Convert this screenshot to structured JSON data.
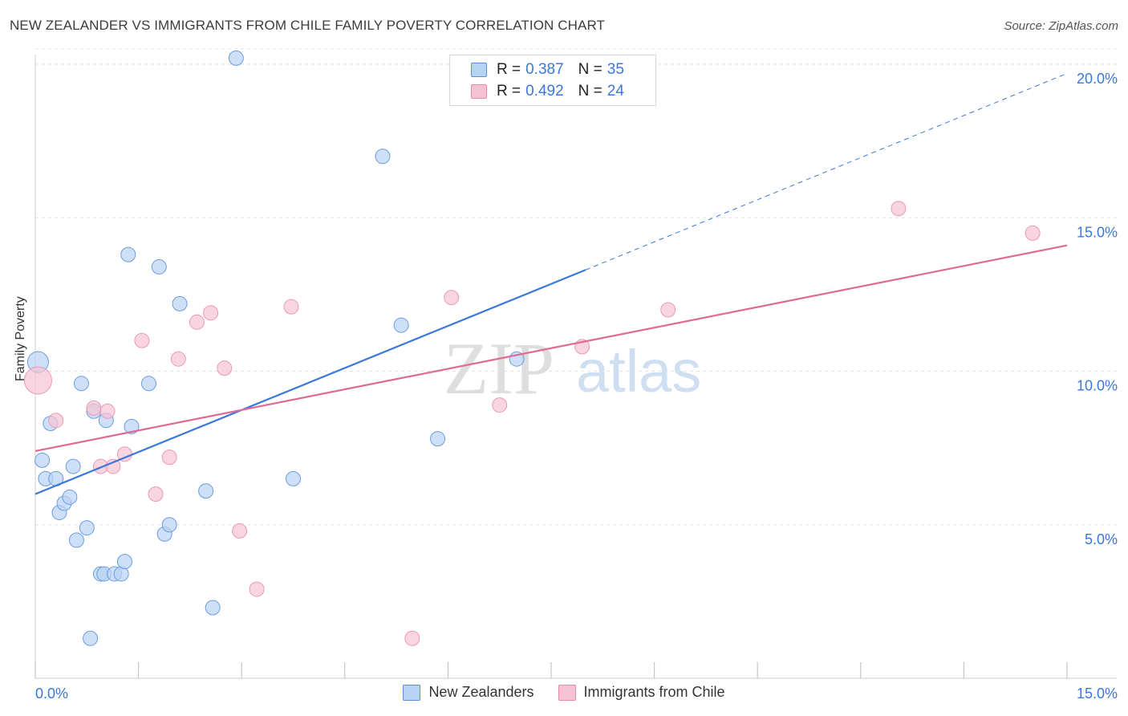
{
  "title": "NEW ZEALANDER VS IMMIGRANTS FROM CHILE FAMILY POVERTY CORRELATION CHART",
  "source": "Source: ZipAtlas.com",
  "colors": {
    "blue": "#3a78d8",
    "blue_fill": "#b9d3f3",
    "pink": "#e06a95",
    "pink_fill": "#f7c3d4",
    "tick_text": "#3a78d8"
  },
  "legend": {
    "rows": [
      {
        "r_label": "R =",
        "r_value": "0.387",
        "n_label": "N =",
        "n_value": "35"
      },
      {
        "r_label": "R =",
        "r_value": "0.492",
        "n_label": "N =",
        "n_value": "24"
      }
    ]
  },
  "chart_data": {
    "type": "scatter",
    "title": "NEW ZEALANDER VS IMMIGRANTS FROM CHILE FAMILY POVERTY CORRELATION CHART",
    "xlabel": "",
    "ylabel": "Family Poverty",
    "xlim": [
      0,
      15
    ],
    "ylim": [
      0,
      20
    ],
    "x_tick_labels": [
      "0.0%",
      "15.0%"
    ],
    "y_ticks": [
      5,
      10,
      15,
      20
    ],
    "y_tick_labels": [
      "5.0%",
      "10.0%",
      "15.0%",
      "20.0%"
    ],
    "grid": true,
    "legend_position": "top-center",
    "watermark": "ZIPatlas",
    "series": [
      {
        "name": "New Zealanders",
        "R": 0.387,
        "N": 35,
        "trend": {
          "x0": 0.0,
          "y0": 6.0,
          "x1": 8.0,
          "y1": 13.3,
          "dash_to_x": 15.0,
          "dash_to_y": 19.7
        },
        "points": [
          [
            0.04,
            10.3,
            12
          ],
          [
            0.1,
            7.1,
            8
          ],
          [
            0.15,
            6.5,
            8
          ],
          [
            0.22,
            8.3,
            8
          ],
          [
            0.3,
            6.5,
            8
          ],
          [
            0.35,
            5.4,
            8
          ],
          [
            0.42,
            5.7,
            8
          ],
          [
            0.5,
            5.9,
            8
          ],
          [
            0.55,
            6.9,
            8
          ],
          [
            0.6,
            4.5,
            8
          ],
          [
            0.67,
            9.6,
            8
          ],
          [
            0.75,
            4.9,
            8
          ],
          [
            0.8,
            1.3,
            8
          ],
          [
            0.85,
            8.7,
            8
          ],
          [
            0.95,
            3.4,
            8
          ],
          [
            1.0,
            3.4,
            8
          ],
          [
            1.03,
            8.4,
            8
          ],
          [
            1.15,
            3.4,
            8
          ],
          [
            1.25,
            3.4,
            8
          ],
          [
            1.3,
            3.8,
            8
          ],
          [
            1.35,
            13.8,
            8
          ],
          [
            1.4,
            8.2,
            8
          ],
          [
            1.65,
            9.6,
            8
          ],
          [
            1.8,
            13.4,
            8
          ],
          [
            1.88,
            4.7,
            8
          ],
          [
            1.95,
            5.0,
            8
          ],
          [
            2.1,
            12.2,
            8
          ],
          [
            2.48,
            6.1,
            8
          ],
          [
            2.58,
            2.3,
            8
          ],
          [
            2.92,
            20.2,
            8
          ],
          [
            3.75,
            6.5,
            8
          ],
          [
            5.05,
            17.0,
            8
          ],
          [
            5.32,
            11.5,
            8
          ],
          [
            5.85,
            7.8,
            8
          ],
          [
            7.0,
            10.4,
            8
          ]
        ]
      },
      {
        "name": "Immigrants from Chile",
        "R": 0.492,
        "N": 24,
        "trend": {
          "x0": 0.0,
          "y0": 7.4,
          "x1": 15.0,
          "y1": 14.1
        },
        "points": [
          [
            0.04,
            9.7,
            16
          ],
          [
            0.3,
            8.4,
            8
          ],
          [
            0.85,
            8.8,
            8
          ],
          [
            1.05,
            8.7,
            8
          ],
          [
            0.95,
            6.9,
            8
          ],
          [
            1.13,
            6.9,
            8
          ],
          [
            1.3,
            7.3,
            8
          ],
          [
            1.55,
            11.0,
            8
          ],
          [
            1.75,
            6.0,
            8
          ],
          [
            1.95,
            7.2,
            8
          ],
          [
            2.08,
            10.4,
            8
          ],
          [
            2.35,
            11.6,
            8
          ],
          [
            2.55,
            11.9,
            8
          ],
          [
            2.75,
            10.1,
            8
          ],
          [
            2.97,
            4.8,
            8
          ],
          [
            3.22,
            2.9,
            8
          ],
          [
            3.72,
            12.1,
            8
          ],
          [
            5.48,
            1.3,
            8
          ],
          [
            6.05,
            12.4,
            8
          ],
          [
            6.75,
            8.9,
            8
          ],
          [
            7.95,
            10.8,
            8
          ],
          [
            9.2,
            12.0,
            8
          ],
          [
            12.55,
            15.3,
            8
          ],
          [
            14.5,
            14.5,
            8
          ]
        ]
      }
    ]
  }
}
